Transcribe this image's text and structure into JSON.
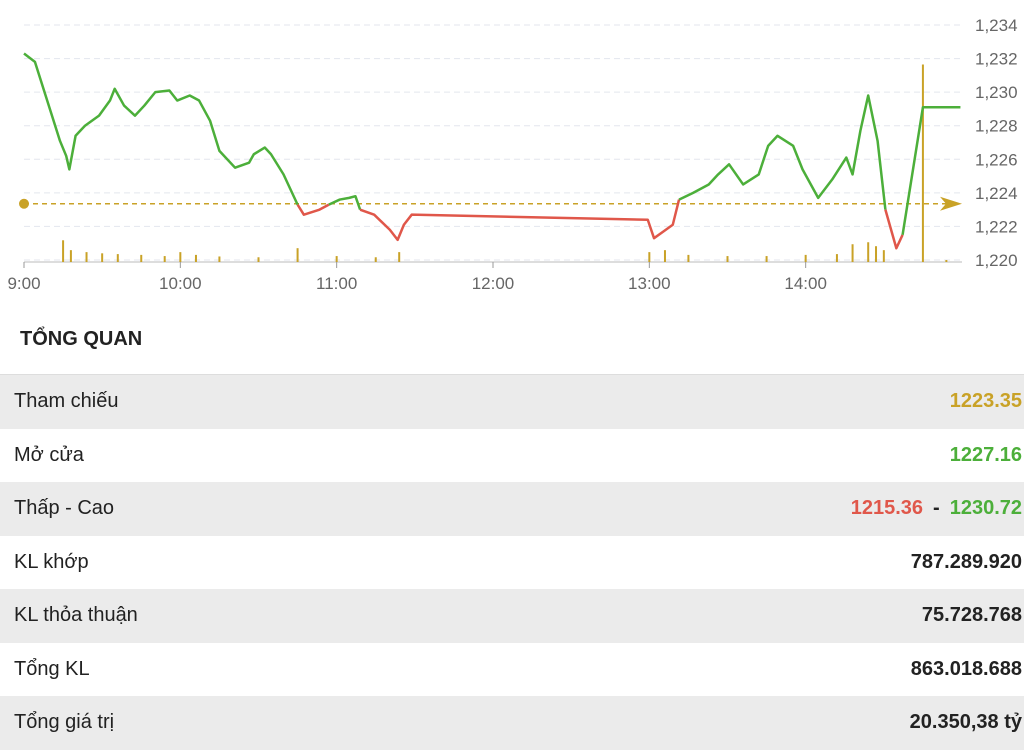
{
  "chart_data": {
    "type": "line",
    "x": [
      9.0,
      9.07,
      9.23,
      9.27,
      9.29,
      9.33,
      9.39,
      9.48,
      9.55,
      9.58,
      9.64,
      9.71,
      9.77,
      9.84,
      9.93,
      9.98,
      10.06,
      10.12,
      10.19,
      10.25,
      10.35,
      10.44,
      10.47,
      10.54,
      10.58,
      10.66,
      10.75,
      10.79,
      10.89,
      10.95,
      11.02,
      11.08,
      11.12,
      11.15,
      11.24,
      11.34,
      11.39,
      11.43,
      11.48,
      12.99,
      13.03,
      13.09,
      13.15,
      13.19,
      13.28,
      13.38,
      13.44,
      13.51,
      13.6,
      13.7,
      13.76,
      13.82,
      13.92,
      13.98,
      14.08,
      14.17,
      14.26,
      14.3,
      14.35,
      14.4,
      14.46,
      14.51,
      14.58,
      14.62,
      14.75,
      14.99
    ],
    "series": [
      {
        "values": [
          1232.3,
          1231.8,
          1227.1,
          1226.2,
          1225.4,
          1227.4,
          1228.0,
          1228.6,
          1229.5,
          1230.2,
          1229.2,
          1228.6,
          1229.2,
          1230.0,
          1230.1,
          1229.5,
          1229.8,
          1229.5,
          1228.3,
          1226.5,
          1225.5,
          1225.8,
          1226.3,
          1226.7,
          1226.3,
          1225.1,
          1223.3,
          1222.7,
          1223.0,
          1223.3,
          1223.6,
          1223.7,
          1223.8,
          1223.0,
          1222.7,
          1221.8,
          1221.2,
          1222.1,
          1222.7,
          1222.4,
          1221.3,
          1221.7,
          1222.1,
          1223.6,
          1224.0,
          1224.5,
          1225.1,
          1225.7,
          1224.5,
          1225.1,
          1226.8,
          1227.4,
          1226.8,
          1225.4,
          1223.7,
          1224.8,
          1226.1,
          1225.1,
          1227.7,
          1229.8,
          1227.1,
          1223.0,
          1220.7,
          1221.5,
          1229.1,
          1229.1
        ]
      }
    ],
    "up_color": "#4caf3a",
    "down_color": "#e0574a",
    "reference_line": {
      "value": 1223.35,
      "color": "#c9a227"
    },
    "volume": {
      "color": "#c9a227",
      "x": [
        9.25,
        9.3,
        9.4,
        9.5,
        9.6,
        9.75,
        9.9,
        10.0,
        10.1,
        10.25,
        10.5,
        10.75,
        11.0,
        11.25,
        11.4,
        13.0,
        13.1,
        13.25,
        13.5,
        13.75,
        14.0,
        14.2,
        14.3,
        14.4,
        14.45,
        14.5,
        14.75,
        14.9
      ],
      "values": [
        55,
        30,
        25,
        22,
        20,
        18,
        15,
        25,
        18,
        14,
        12,
        35,
        15,
        12,
        25,
        25,
        30,
        18,
        15,
        15,
        18,
        20,
        45,
        50,
        40,
        30,
        500,
        5
      ],
      "ylim": [
        0,
        600
      ]
    },
    "xlim": [
      9,
      15
    ],
    "xticks": [
      {
        "value": 9,
        "label": "9:00"
      },
      {
        "value": 10,
        "label": "10:00"
      },
      {
        "value": 11,
        "label": "11:00"
      },
      {
        "value": 12,
        "label": "12:00"
      },
      {
        "value": 13,
        "label": "13:00"
      },
      {
        "value": 14,
        "label": "14:00"
      }
    ],
    "ylim": [
      1220,
      1234
    ],
    "yticks": [
      {
        "value": 1220,
        "label": "1,220"
      },
      {
        "value": 1222,
        "label": "1,222"
      },
      {
        "value": 1224,
        "label": "1,224"
      },
      {
        "value": 1226,
        "label": "1,226"
      },
      {
        "value": 1228,
        "label": "1,228"
      },
      {
        "value": 1230,
        "label": "1,230"
      },
      {
        "value": 1232,
        "label": "1,232"
      },
      {
        "value": 1234,
        "label": "1,234"
      }
    ],
    "grid": true
  },
  "overview": {
    "title": "TỔNG QUAN",
    "rows": [
      {
        "label": "Tham chiếu",
        "value": "1223.35",
        "color": "#c9a227"
      },
      {
        "label": "Mở cửa",
        "value": "1227.16",
        "color": "#4caf3a"
      },
      {
        "label": "Thấp - Cao",
        "low": "1215.36",
        "separator": "-",
        "high": "1230.72",
        "low_color": "#e0574a",
        "high_color": "#4caf3a"
      },
      {
        "label": "KL khớp",
        "value": "787.289.920",
        "color": "#222222"
      },
      {
        "label": "KL thỏa thuận",
        "value": "75.728.768",
        "color": "#222222"
      },
      {
        "label": "Tổng KL",
        "value": "863.018.688",
        "color": "#222222"
      },
      {
        "label": "Tổng giá trị",
        "value": "20.350,38 tỷ",
        "color": "#222222"
      }
    ]
  }
}
